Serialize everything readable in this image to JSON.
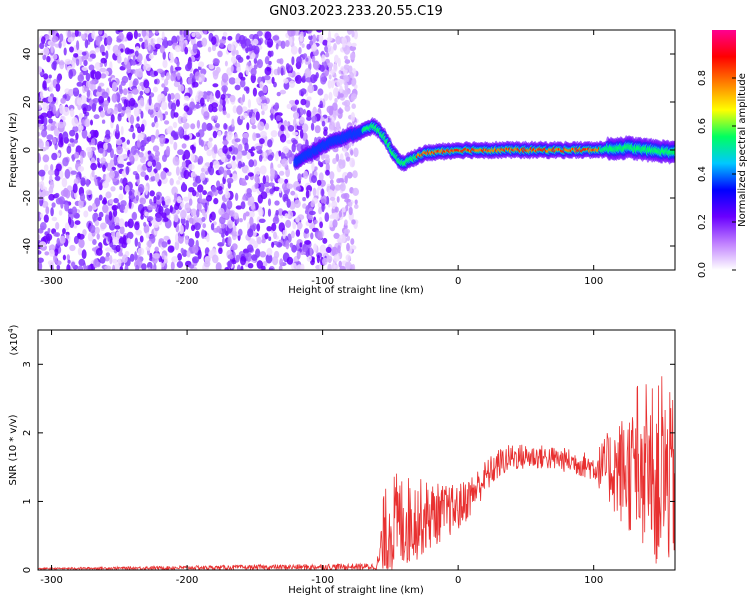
{
  "title": "GN03.2023.233.20.55.C19",
  "chart_data": [
    {
      "type": "heatmap",
      "xlabel": "Height of straight line (km)",
      "ylabel": "Frequency (Hz)",
      "xlim": [
        -310,
        160
      ],
      "ylim": [
        -50,
        50
      ],
      "xticks": [
        -300,
        -200,
        -100,
        0,
        100
      ],
      "yticks": [
        -40,
        -20,
        0,
        20,
        40
      ],
      "colorbar": {
        "label": "Normalized spectral amplitude",
        "range": [
          0,
          1
        ],
        "ticks": [
          "0.0",
          "0.2",
          "0.4",
          "0.6",
          "0.8"
        ],
        "colors": [
          "#ffffff",
          "#c080ff",
          "#6a00ff",
          "#0000ff",
          "#00c8ff",
          "#00ff60",
          "#ffff00",
          "#ff8000",
          "#ff0000",
          "#ff0090"
        ]
      },
      "noise_region_x": [
        -310,
        -75
      ],
      "ridge": {
        "x": [
          -120,
          -105,
          -92,
          -80,
          -70,
          -62,
          -55,
          -48,
          -42,
          -35,
          -28,
          -20,
          0,
          50,
          100,
          125,
          140,
          160
        ],
        "y": [
          -5,
          0,
          4,
          6,
          8,
          10,
          6,
          -1,
          -6,
          -4,
          -2,
          -1,
          0,
          0,
          0,
          1,
          0,
          -1
        ]
      }
    },
    {
      "type": "line",
      "xlabel": "Height of straight line (km)",
      "ylabel": "SNR (10 * v/v)",
      "scale_label": "(x10",
      "scale_exp": "4",
      "scale_close": ")",
      "xlim": [
        -310,
        160
      ],
      "ylim": [
        0,
        3.5
      ],
      "xticks": [
        -300,
        -200,
        -100,
        0,
        100
      ],
      "yticks": [
        0,
        1,
        2,
        3
      ],
      "series": [
        {
          "color": "#e83030",
          "envelope": {
            "x": [
              -310,
              -60,
              -55,
              -50,
              -40,
              -30,
              -20,
              -10,
              0,
              10,
              20,
              30,
              40,
              60,
              80,
              100,
              110,
              120,
              130,
              140,
              150,
              160
            ],
            "y": [
              0.02,
              0.05,
              0.4,
              0.65,
              0.7,
              0.75,
              0.8,
              0.85,
              0.9,
              1.1,
              1.35,
              1.55,
              1.65,
              1.65,
              1.6,
              1.5,
              1.5,
              1.45,
              1.45,
              1.4,
              1.35,
              1.3
            ],
            "spread": [
              0.01,
              0.05,
              0.7,
              0.8,
              0.7,
              0.6,
              0.5,
              0.4,
              0.35,
              0.3,
              0.25,
              0.22,
              0.2,
              0.18,
              0.18,
              0.2,
              0.5,
              0.8,
              1.0,
              1.2,
              1.4,
              1.2
            ]
          }
        }
      ]
    }
  ]
}
